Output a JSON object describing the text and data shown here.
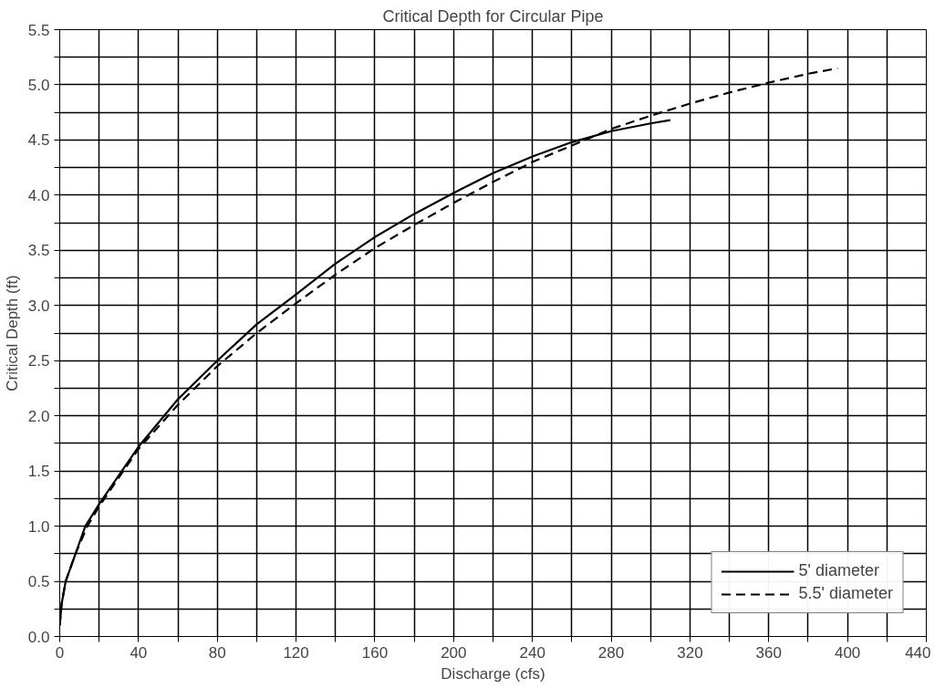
{
  "chart_data": {
    "type": "line",
    "title": "Critical Depth for Circular Pipe",
    "xlabel": "Discharge (cfs)",
    "ylabel": "Critical Depth (ft)",
    "xlim": [
      0,
      440
    ],
    "ylim": [
      0,
      5.5
    ],
    "xticks": [
      0,
      {
        "value": 20,
        "label": null
      },
      40,
      {
        "value": 60,
        "label": null
      },
      80,
      {
        "value": 100,
        "label": null
      },
      120,
      {
        "value": 140,
        "label": null
      },
      160,
      {
        "value": 180,
        "label": null
      },
      200,
      {
        "value": 220,
        "label": null
      },
      240,
      {
        "value": 260,
        "label": null
      },
      280,
      {
        "value": 300,
        "label": null
      },
      320,
      {
        "value": 340,
        "label": null
      },
      360,
      {
        "value": 380,
        "label": null
      },
      400,
      {
        "value": 420,
        "label": null
      },
      440
    ],
    "yticks": [
      {
        "value": 0,
        "label": "0.0"
      },
      {
        "value": 0.25,
        "label": null
      },
      {
        "value": 0.5,
        "label": "0.5"
      },
      {
        "value": 0.75,
        "label": null
      },
      {
        "value": 1,
        "label": "1.0"
      },
      {
        "value": 1.25,
        "label": null
      },
      {
        "value": 1.5,
        "label": "1.5"
      },
      {
        "value": 1.75,
        "label": null
      },
      {
        "value": 2,
        "label": "2.0"
      },
      {
        "value": 2.25,
        "label": null
      },
      {
        "value": 2.5,
        "label": "2.5"
      },
      {
        "value": 2.75,
        "label": null
      },
      {
        "value": 3,
        "label": "3.0"
      },
      {
        "value": 3.25,
        "label": null
      },
      {
        "value": 3.5,
        "label": "3.5"
      },
      {
        "value": 3.75,
        "label": null
      },
      {
        "value": 4,
        "label": "4.0"
      },
      {
        "value": 4.25,
        "label": null
      },
      {
        "value": 4.5,
        "label": "4.5"
      },
      {
        "value": 4.75,
        "label": null
      },
      {
        "value": 5,
        "label": "5.0"
      },
      {
        "value": 5.25,
        "label": null
      },
      {
        "value": 5.5,
        "label": "5.5"
      }
    ],
    "grid": true,
    "legend": "bottom right",
    "marker": "none",
    "series": [
      {
        "name": "5' diameter",
        "color": "#000000",
        "line_style": "solid",
        "x": [
          0,
          1,
          3,
          8,
          13,
          20,
          40,
          60,
          80,
          100,
          120,
          140,
          160,
          180,
          200,
          220,
          240,
          260,
          280,
          300,
          310
        ],
        "values": [
          0.1,
          0.3,
          0.5,
          0.75,
          1.0,
          1.2,
          1.72,
          2.15,
          2.5,
          2.83,
          3.1,
          3.38,
          3.62,
          3.83,
          4.02,
          4.2,
          4.35,
          4.48,
          4.58,
          4.65,
          4.68
        ]
      },
      {
        "name": "5.5' diameter",
        "color": "#000000",
        "line_style": "dashed",
        "x": [
          0,
          1,
          3,
          8,
          14,
          20,
          40,
          60,
          80,
          100,
          120,
          140,
          160,
          180,
          200,
          220,
          240,
          260,
          280,
          300,
          320,
          340,
          360,
          380,
          395
        ],
        "values": [
          0.1,
          0.3,
          0.5,
          0.75,
          1.0,
          1.18,
          1.7,
          2.1,
          2.45,
          2.75,
          3.02,
          3.28,
          3.52,
          3.73,
          3.93,
          4.12,
          4.3,
          4.45,
          4.6,
          4.72,
          4.83,
          4.93,
          5.02,
          5.1,
          5.15
        ]
      }
    ]
  }
}
